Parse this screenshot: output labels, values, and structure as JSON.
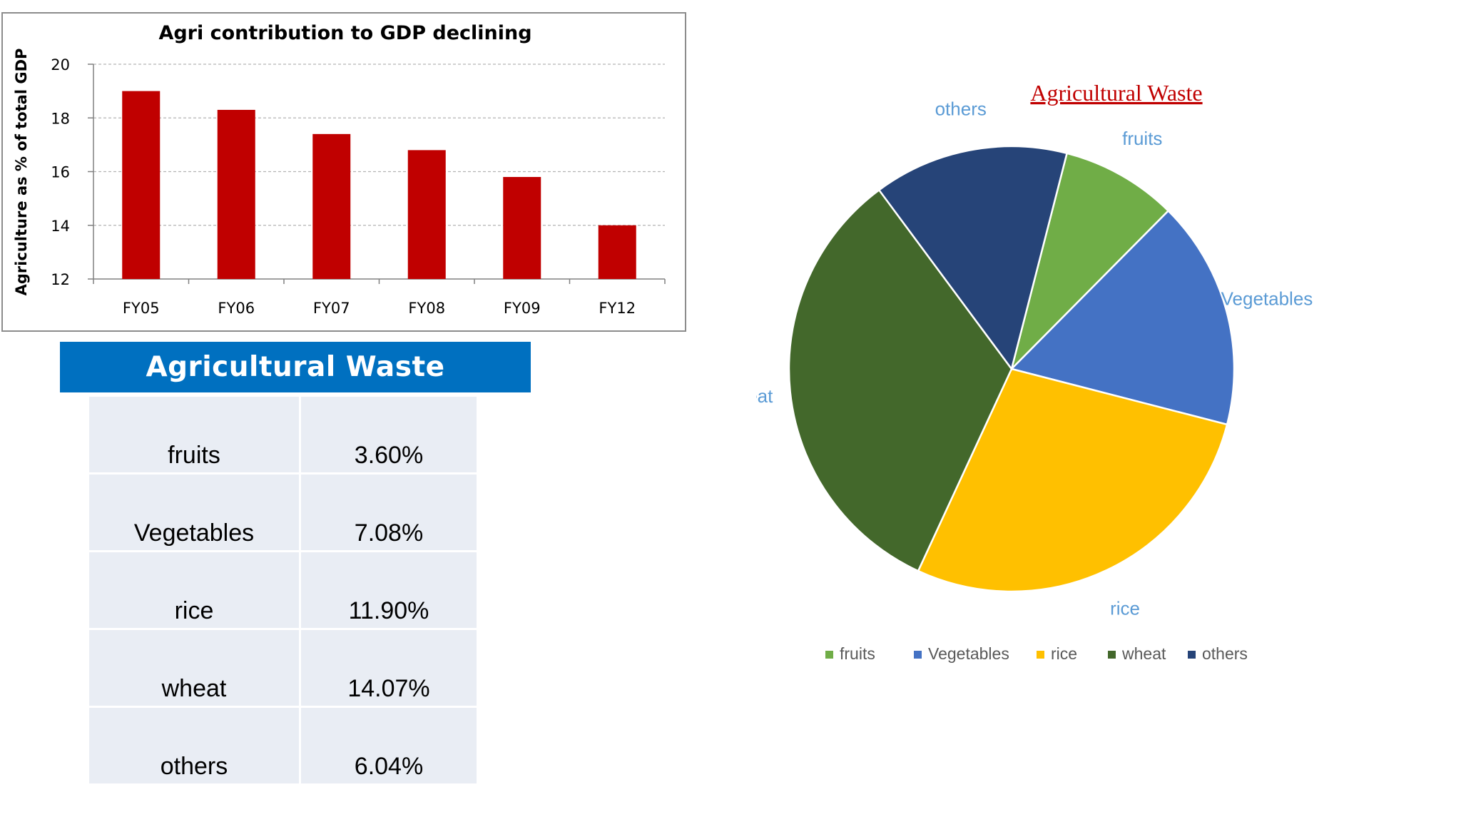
{
  "chart_data": [
    {
      "type": "bar",
      "title": "Agri contribution to GDP declining",
      "xlabel": "",
      "ylabel": "Agriculture as % of total GDP",
      "categories": [
        "FY05",
        "FY06",
        "FY07",
        "FY08",
        "FY09",
        "FY12"
      ],
      "values": [
        19.0,
        18.3,
        17.4,
        16.8,
        15.8,
        14.0
      ],
      "ylim": [
        12,
        20
      ],
      "yticks": [
        12,
        14,
        16,
        18,
        20
      ],
      "grid": true,
      "color": "#c00000"
    },
    {
      "type": "pie",
      "title": "Agricultural Waste",
      "categories": [
        "fruits",
        "Vegetables",
        "rice",
        "wheat",
        "others"
      ],
      "values": [
        3.6,
        7.08,
        11.9,
        14.07,
        6.04
      ],
      "colors": [
        "#70ad47",
        "#4472c4",
        "#ffc000",
        "#43682b",
        "#264478"
      ],
      "legend": "bottom",
      "label_color": "#5b9bd5",
      "title_color": "#c00000"
    }
  ],
  "table": {
    "title": "Agricultural Waste",
    "rows": [
      {
        "name": "fruits",
        "value": "3.60%"
      },
      {
        "name": "Vegetables",
        "value": "7.08%"
      },
      {
        "name": "rice",
        "value": "11.90%"
      },
      {
        "name": "wheat",
        "value": "14.07%"
      },
      {
        "name": "others",
        "value": "6.04%"
      }
    ]
  },
  "colors": {
    "banner": "#0070c0",
    "table_cell": "#e9edf4"
  }
}
